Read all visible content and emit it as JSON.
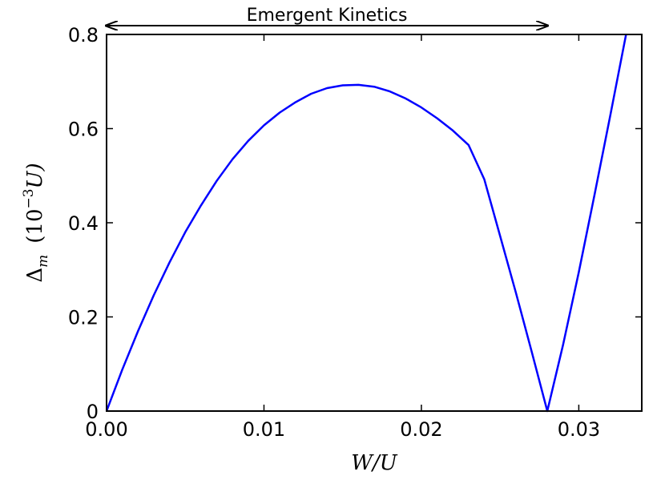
{
  "chart_data": {
    "type": "line",
    "xlabel_main": "W/U",
    "ylabel_prefix": "Δ",
    "ylabel_sub": "m",
    "ylabel_unit_open": "(10",
    "ylabel_unit_exp": "−3",
    "ylabel_unit_close": "U)",
    "xlim": [
      0,
      0.034
    ],
    "ylim": [
      0,
      0.8
    ],
    "xticks": [
      {
        "value": 0.0,
        "label": "0.00"
      },
      {
        "value": 0.01,
        "label": "0.01"
      },
      {
        "value": 0.02,
        "label": "0.02"
      },
      {
        "value": 0.03,
        "label": "0.03"
      }
    ],
    "yticks": [
      {
        "value": 0.0,
        "label": "0"
      },
      {
        "value": 0.2,
        "label": "0.2"
      },
      {
        "value": 0.4,
        "label": "0.4"
      },
      {
        "value": 0.6,
        "label": "0.6"
      },
      {
        "value": 0.8,
        "label": "0.8"
      }
    ],
    "annotation": {
      "text": "Emergent Kinetics",
      "x_start": 0.0,
      "x_end": 0.028
    },
    "series": [
      {
        "color": "#0000ff",
        "x": [
          0.0,
          0.001,
          0.002,
          0.003,
          0.004,
          0.005,
          0.006,
          0.007,
          0.008,
          0.009,
          0.01,
          0.011,
          0.012,
          0.013,
          0.014,
          0.015,
          0.016,
          0.017,
          0.018,
          0.019,
          0.02,
          0.021,
          0.022,
          0.023,
          0.024,
          0.025,
          0.026,
          0.027,
          0.028,
          0.029,
          0.03,
          0.031,
          0.032,
          0.033
        ],
        "y": [
          0.0,
          0.088,
          0.17,
          0.246,
          0.316,
          0.38,
          0.437,
          0.489,
          0.535,
          0.574,
          0.607,
          0.634,
          0.656,
          0.674,
          0.686,
          0.692,
          0.693,
          0.689,
          0.679,
          0.664,
          0.645,
          0.622,
          0.596,
          0.565,
          0.492,
          0.372,
          0.252,
          0.127,
          0.0,
          0.141,
          0.295,
          0.46,
          0.628,
          0.8
        ]
      }
    ]
  }
}
